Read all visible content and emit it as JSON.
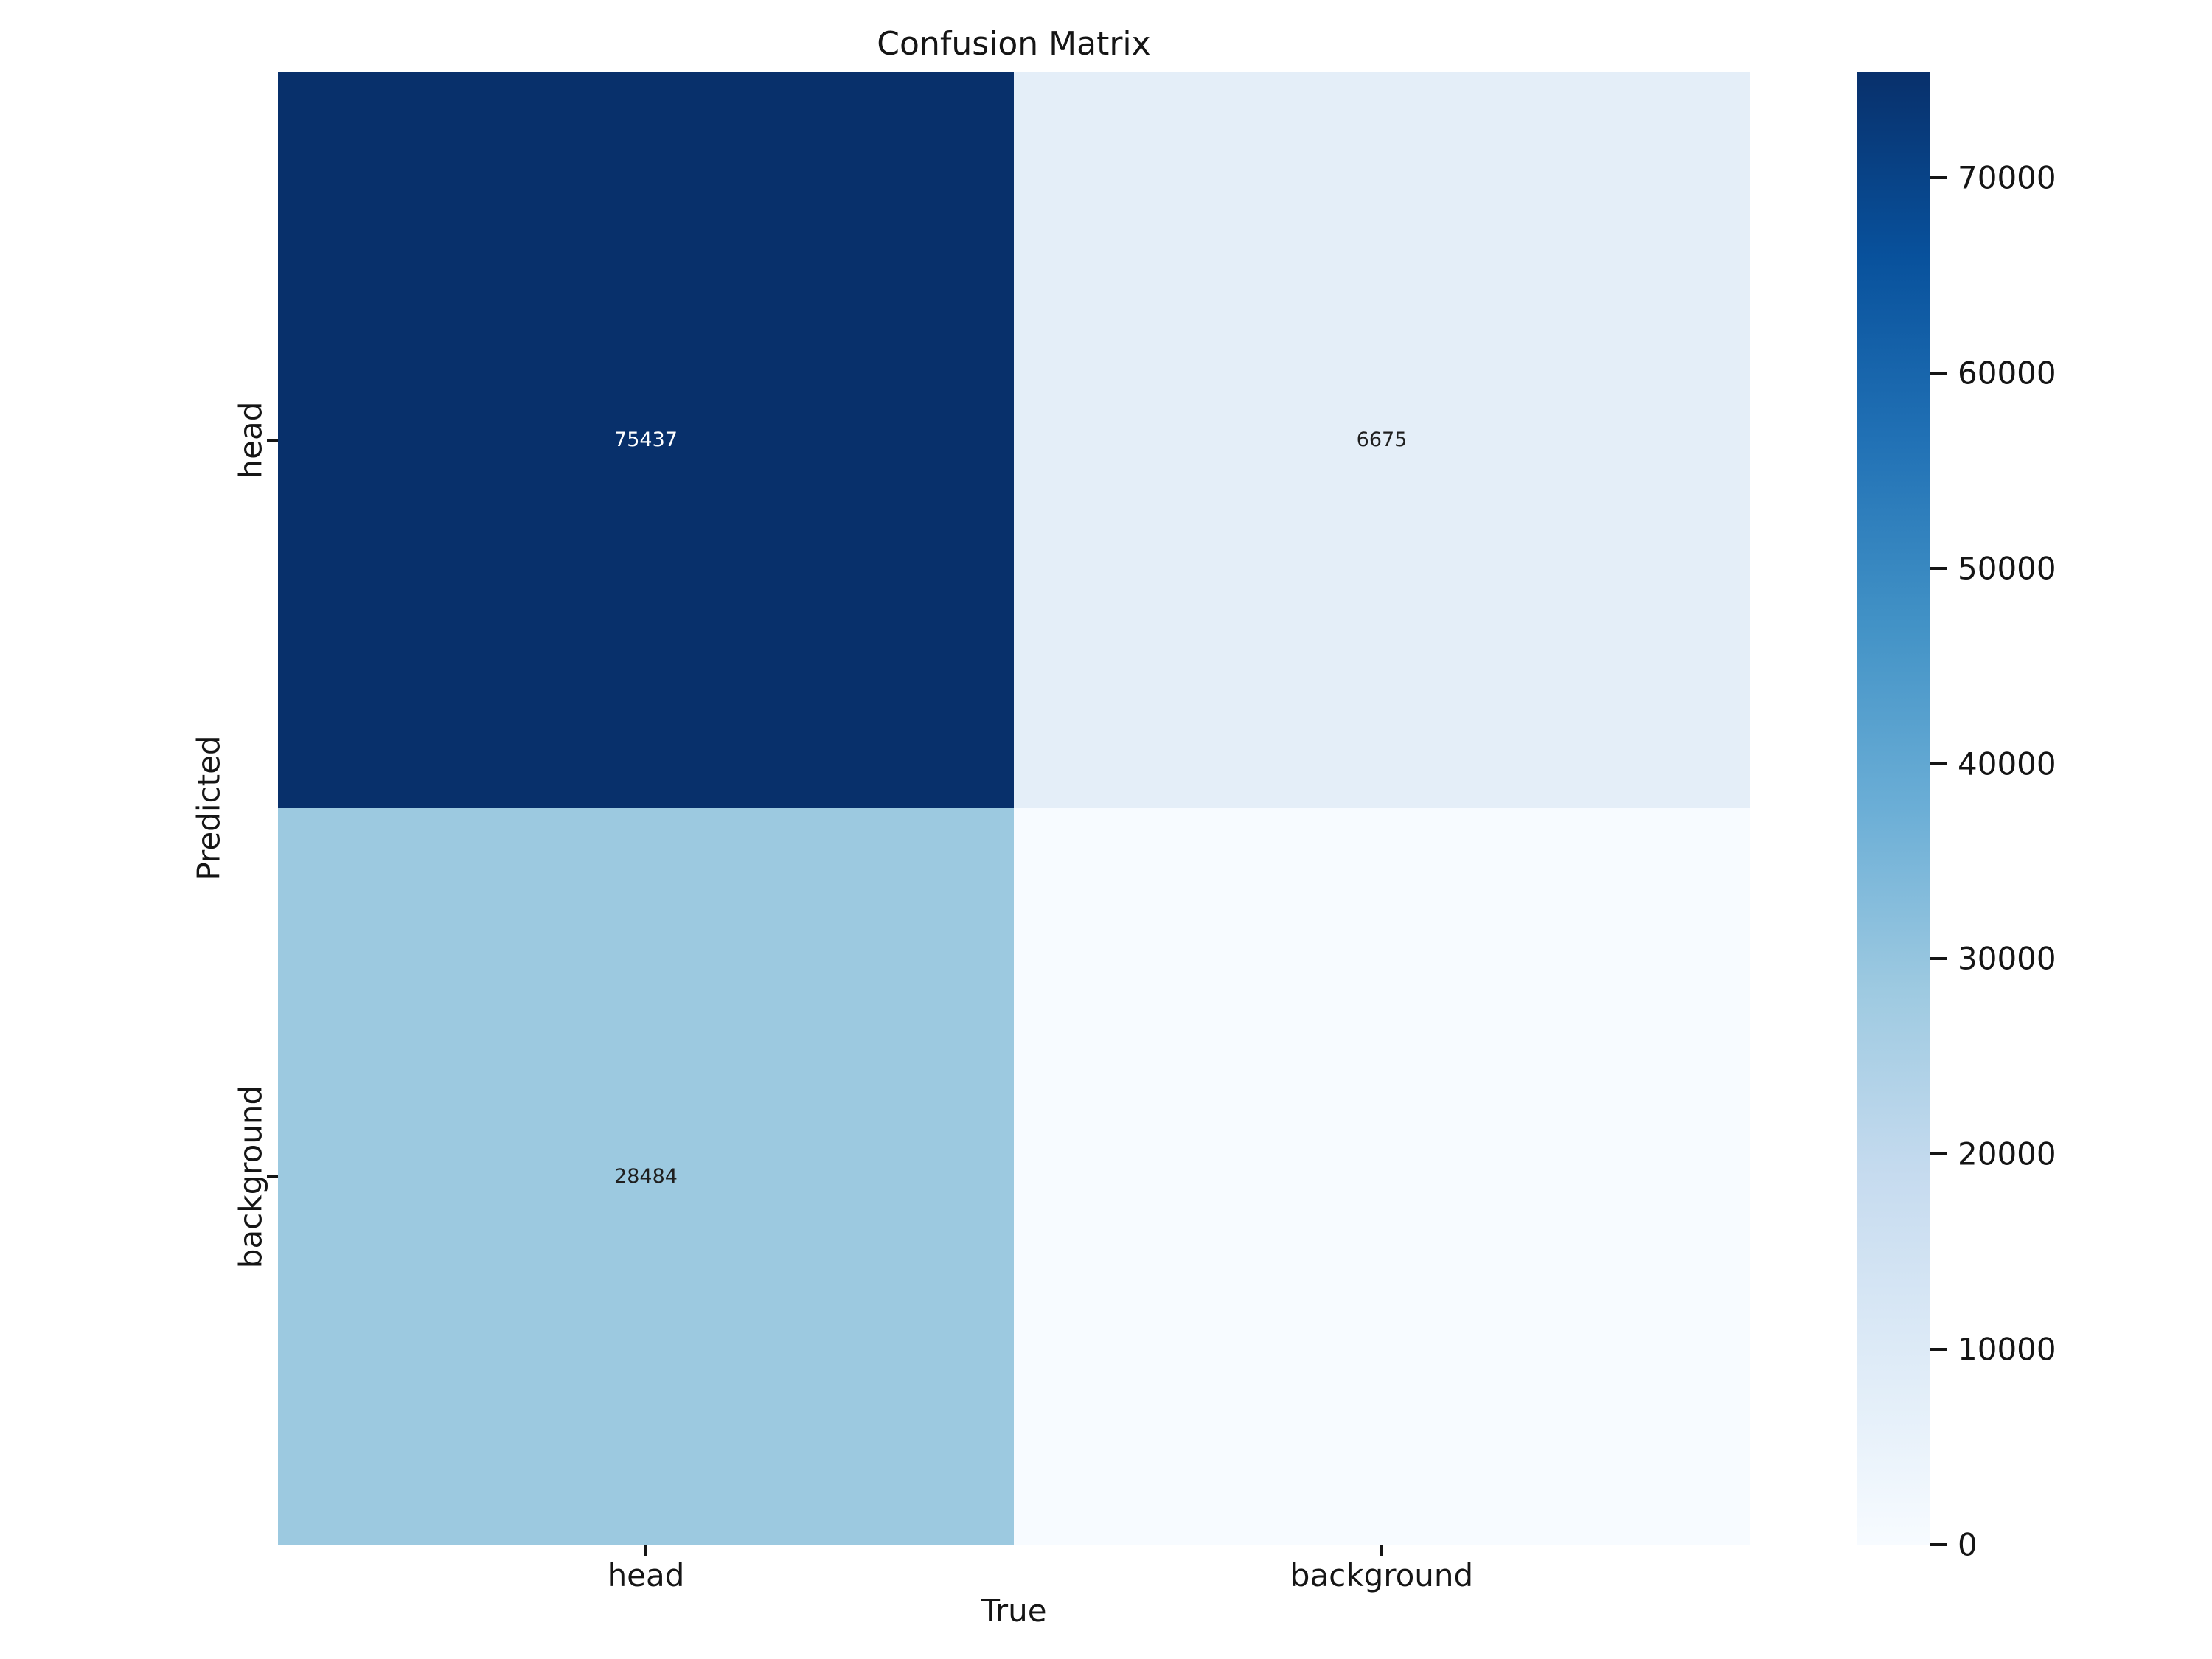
{
  "chart_data": {
    "type": "heatmap",
    "title": "Confusion Matrix",
    "xlabel": "True",
    "ylabel": "Predicted",
    "x_categories": [
      "head",
      "background"
    ],
    "y_categories": [
      "head",
      "background"
    ],
    "matrix": [
      [
        75437,
        6675
      ],
      [
        28484,
        0
      ]
    ],
    "colormap": "Blues",
    "vmin": 0,
    "vmax": 75437,
    "grid": false,
    "colorbar_position": "right",
    "text_color": "#151515",
    "background": "#ffffff",
    "cells": [
      {
        "row": "head",
        "col": "head",
        "value": 75437,
        "label": "75437",
        "bg": "#08306b",
        "fg": "#ffffff"
      },
      {
        "row": "head",
        "col": "background",
        "value": 6675,
        "label": "6675",
        "bg": "#e4eef8",
        "fg": "#1f1f1f"
      },
      {
        "row": "background",
        "col": "head",
        "value": 28484,
        "label": "28484",
        "bg": "#9cc9e0",
        "fg": "#1f1f1f"
      },
      {
        "row": "background",
        "col": "background",
        "value": 0,
        "label": "",
        "bg": "#f7fbff",
        "fg": "#1f1f1f"
      }
    ],
    "colorbar": {
      "tick_labels": [
        "0",
        "10000",
        "20000",
        "30000",
        "40000",
        "50000",
        "60000",
        "70000"
      ],
      "tick_values": [
        0,
        10000,
        20000,
        30000,
        40000,
        50000,
        60000,
        70000
      ],
      "gradient_stops": [
        {
          "pos": 0.0,
          "color": "#f7fbff"
        },
        {
          "pos": 0.125,
          "color": "#deebf7"
        },
        {
          "pos": 0.25,
          "color": "#c6dbef"
        },
        {
          "pos": 0.375,
          "color": "#9ecae1"
        },
        {
          "pos": 0.5,
          "color": "#6baed6"
        },
        {
          "pos": 0.625,
          "color": "#4292c6"
        },
        {
          "pos": 0.75,
          "color": "#2171b5"
        },
        {
          "pos": 0.875,
          "color": "#08519c"
        },
        {
          "pos": 1.0,
          "color": "#08306b"
        }
      ]
    }
  }
}
